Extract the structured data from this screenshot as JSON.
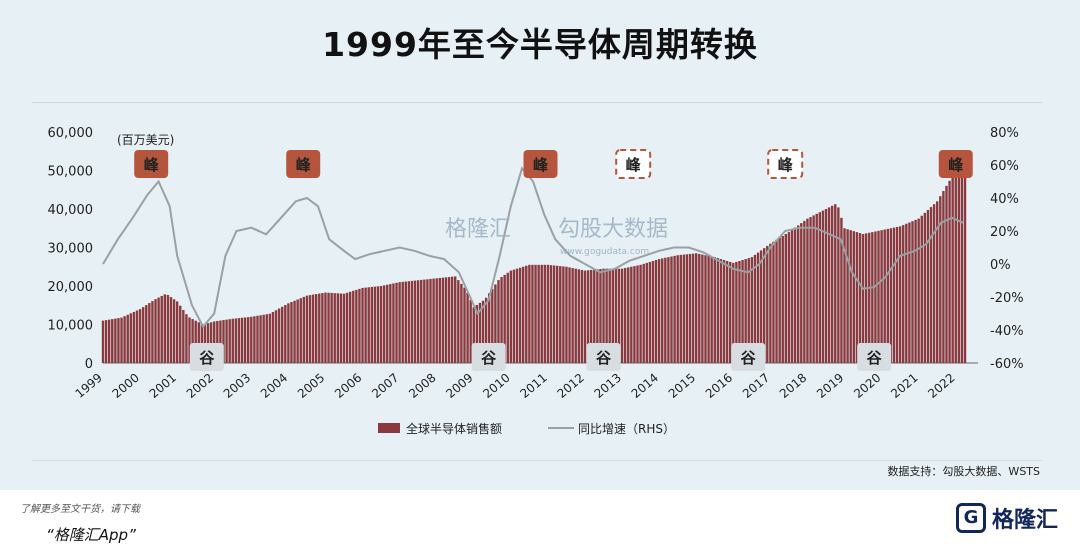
{
  "title": "1999年至今半导体周期转换",
  "source": "数据支持：勾股大数据、WSTS",
  "footer": {
    "promo": "了解更多至文干货，请下载",
    "app": "“格隆汇App”",
    "logo": "格隆汇"
  },
  "watermark": {
    "left": "格隆汇",
    "right": "勾股大数据",
    "url": "www.gogudata.com"
  },
  "colors": {
    "bar": "#8a3a3f",
    "line": "#9aa0a3",
    "peak_fill": "#b5553d",
    "trough_fill": "#d7dde0"
  },
  "chart_data": {
    "type": "bar+line",
    "unit_label": "(百万美元)",
    "x_tick_labels": [
      "1999",
      "2000",
      "2001",
      "2002",
      "2003",
      "2004",
      "2005",
      "2006",
      "2007",
      "2008",
      "2009",
      "2010",
      "2011",
      "2012",
      "2013",
      "2014",
      "2015",
      "2016",
      "2017",
      "2018",
      "2019",
      "2020",
      "2021",
      "2022"
    ],
    "y_left": {
      "ticks": [
        "0",
        "10,000",
        "20,000",
        "30,000",
        "40,000",
        "50,000",
        "60,000"
      ],
      "lim": [
        0,
        60000
      ]
    },
    "y_right": {
      "ticks": [
        "-60%",
        "-40%",
        "-20%",
        "0%",
        "20%",
        "40%",
        "60%",
        "80%"
      ],
      "lim": [
        -60,
        80
      ]
    },
    "legend": [
      {
        "label": "全球半导体销售额",
        "kind": "bar"
      },
      {
        "label": "同比增速（RHS）",
        "kind": "line"
      }
    ],
    "annotations": [
      {
        "label": "峰",
        "kind": "peak",
        "x": 2000.3
      },
      {
        "label": "峰",
        "kind": "peak",
        "x": 2004.4
      },
      {
        "label": "峰",
        "kind": "peak",
        "x": 2010.8
      },
      {
        "label": "峰",
        "kind": "peak-dashed",
        "x": 2013.3
      },
      {
        "label": "峰",
        "kind": "peak-dashed",
        "x": 2017.4
      },
      {
        "label": "峰",
        "kind": "peak",
        "x": 2022.0
      },
      {
        "label": "谷",
        "kind": "trough",
        "x": 2001.8
      },
      {
        "label": "谷",
        "kind": "trough",
        "x": 2009.4
      },
      {
        "label": "谷",
        "kind": "trough",
        "x": 2012.5
      },
      {
        "label": "谷",
        "kind": "trough",
        "x": 2016.4
      },
      {
        "label": "谷",
        "kind": "trough",
        "x": 2019.8
      }
    ],
    "series": [
      {
        "name": "全球半导体销售额",
        "axis": "left",
        "kind": "bar",
        "points": [
          [
            1999.0,
            11000
          ],
          [
            1999.5,
            11800
          ],
          [
            2000.0,
            14000
          ],
          [
            2000.4,
            16500
          ],
          [
            2000.7,
            18000
          ],
          [
            2001.0,
            16000
          ],
          [
            2001.3,
            12000
          ],
          [
            2001.7,
            10000
          ],
          [
            2002.0,
            10800
          ],
          [
            2002.5,
            11500
          ],
          [
            2003.0,
            12000
          ],
          [
            2003.5,
            12800
          ],
          [
            2004.0,
            15500
          ],
          [
            2004.5,
            17500
          ],
          [
            2005.0,
            18300
          ],
          [
            2005.5,
            18000
          ],
          [
            2006.0,
            19500
          ],
          [
            2006.5,
            20000
          ],
          [
            2007.0,
            21000
          ],
          [
            2007.5,
            21500
          ],
          [
            2008.0,
            22000
          ],
          [
            2008.5,
            22500
          ],
          [
            2008.8,
            19000
          ],
          [
            2009.0,
            14500
          ],
          [
            2009.3,
            16500
          ],
          [
            2009.7,
            22000
          ],
          [
            2010.0,
            24000
          ],
          [
            2010.5,
            25500
          ],
          [
            2011.0,
            25500
          ],
          [
            2011.5,
            25000
          ],
          [
            2012.0,
            24000
          ],
          [
            2012.5,
            24500
          ],
          [
            2013.0,
            24500
          ],
          [
            2013.5,
            25500
          ],
          [
            2014.0,
            27000
          ],
          [
            2014.5,
            28000
          ],
          [
            2015.0,
            28500
          ],
          [
            2015.5,
            27500
          ],
          [
            2016.0,
            26000
          ],
          [
            2016.5,
            27500
          ],
          [
            2017.0,
            31000
          ],
          [
            2017.5,
            34000
          ],
          [
            2018.0,
            37500
          ],
          [
            2018.5,
            40000
          ],
          [
            2018.8,
            41500
          ],
          [
            2019.0,
            35000
          ],
          [
            2019.5,
            33500
          ],
          [
            2020.0,
            34500
          ],
          [
            2020.5,
            35500
          ],
          [
            2021.0,
            37500
          ],
          [
            2021.5,
            42000
          ],
          [
            2022.0,
            50000
          ],
          [
            2022.3,
            52000
          ]
        ]
      },
      {
        "name": "同比增速（RHS）",
        "axis": "right",
        "kind": "line",
        "points": [
          [
            1999.0,
            0
          ],
          [
            1999.4,
            15
          ],
          [
            1999.8,
            28
          ],
          [
            2000.2,
            42
          ],
          [
            2000.5,
            50
          ],
          [
            2000.8,
            35
          ],
          [
            2001.0,
            5
          ],
          [
            2001.4,
            -25
          ],
          [
            2001.7,
            -38
          ],
          [
            2002.0,
            -30
          ],
          [
            2002.3,
            5
          ],
          [
            2002.6,
            20
          ],
          [
            2003.0,
            22
          ],
          [
            2003.4,
            18
          ],
          [
            2003.8,
            28
          ],
          [
            2004.2,
            38
          ],
          [
            2004.5,
            40
          ],
          [
            2004.8,
            35
          ],
          [
            2005.1,
            15
          ],
          [
            2005.5,
            8
          ],
          [
            2005.8,
            3
          ],
          [
            2006.2,
            6
          ],
          [
            2006.6,
            8
          ],
          [
            2007.0,
            10
          ],
          [
            2007.4,
            8
          ],
          [
            2007.8,
            5
          ],
          [
            2008.2,
            3
          ],
          [
            2008.6,
            -5
          ],
          [
            2008.9,
            -20
          ],
          [
            2009.1,
            -30
          ],
          [
            2009.4,
            -22
          ],
          [
            2009.7,
            5
          ],
          [
            2010.0,
            35
          ],
          [
            2010.3,
            58
          ],
          [
            2010.6,
            50
          ],
          [
            2010.9,
            30
          ],
          [
            2011.2,
            15
          ],
          [
            2011.6,
            5
          ],
          [
            2012.0,
            0
          ],
          [
            2012.4,
            -5
          ],
          [
            2012.8,
            -3
          ],
          [
            2013.2,
            2
          ],
          [
            2013.6,
            5
          ],
          [
            2014.0,
            8
          ],
          [
            2014.4,
            10
          ],
          [
            2014.8,
            10
          ],
          [
            2015.2,
            7
          ],
          [
            2015.6,
            2
          ],
          [
            2016.0,
            -3
          ],
          [
            2016.4,
            -5
          ],
          [
            2016.7,
            0
          ],
          [
            2017.0,
            10
          ],
          [
            2017.4,
            20
          ],
          [
            2017.8,
            22
          ],
          [
            2018.2,
            22
          ],
          [
            2018.6,
            18
          ],
          [
            2018.9,
            15
          ],
          [
            2019.2,
            -5
          ],
          [
            2019.5,
            -15
          ],
          [
            2019.8,
            -14
          ],
          [
            2020.1,
            -8
          ],
          [
            2020.5,
            5
          ],
          [
            2020.9,
            8
          ],
          [
            2021.2,
            12
          ],
          [
            2021.6,
            25
          ],
          [
            2021.9,
            28
          ],
          [
            2022.2,
            25
          ]
        ]
      }
    ]
  }
}
